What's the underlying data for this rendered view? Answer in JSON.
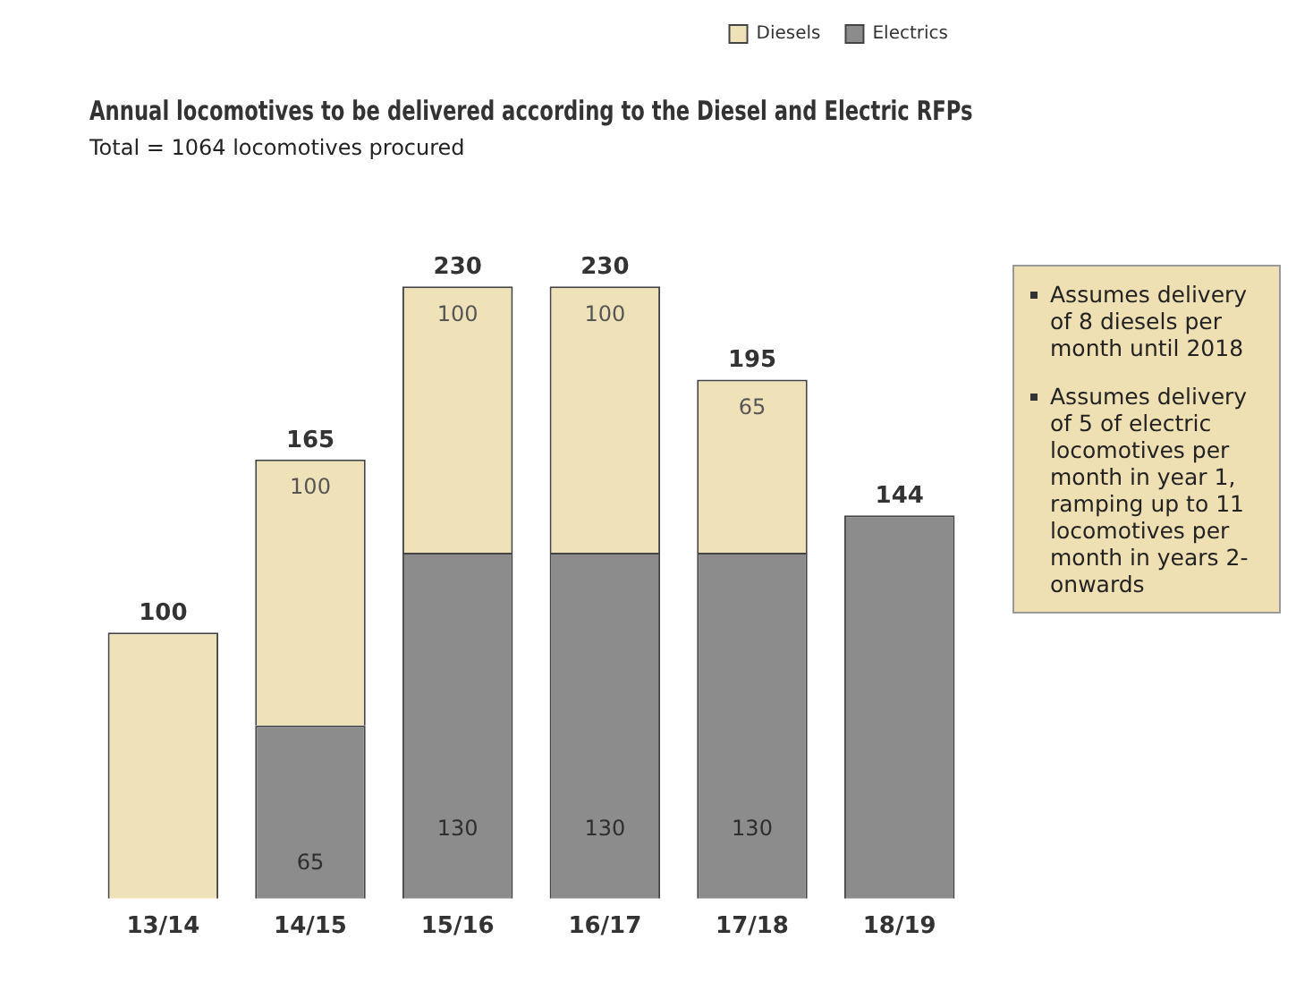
{
  "chart_data": {
    "type": "bar",
    "title": "Annual locomotives to be delivered according to the Diesel and Electric RFPs",
    "subtitle": "Total = 1064 locomotives procured",
    "categories": [
      "13/14",
      "14/15",
      "15/16",
      "16/17",
      "17/18",
      "18/19"
    ],
    "stacked": true,
    "tick_labels": "x",
    "grid": false,
    "legend": "top right",
    "series": [
      {
        "name": "Electrics",
        "color": "#8c8c8c",
        "values": [
          null,
          65,
          130,
          130,
          130,
          144
        ],
        "value_labels": [
          null,
          "65",
          "130",
          "130",
          "130",
          null
        ]
      },
      {
        "name": "Diesels",
        "color": "#f0e2b8",
        "values": [
          100,
          100,
          100,
          100,
          65,
          null
        ],
        "value_labels": [
          null,
          "100",
          "100",
          "100",
          "65",
          null
        ]
      }
    ],
    "totals": [
      "100",
      "165",
      "230",
      "230",
      "195",
      "144"
    ],
    "annotations": [
      "Assumes delivery of 8 diesels per month until 2018",
      "Assumes delivery of 5 of electric locomotives per month in year 1, ramping up to 11 locomotives per month in years 2-onwards"
    ]
  }
}
